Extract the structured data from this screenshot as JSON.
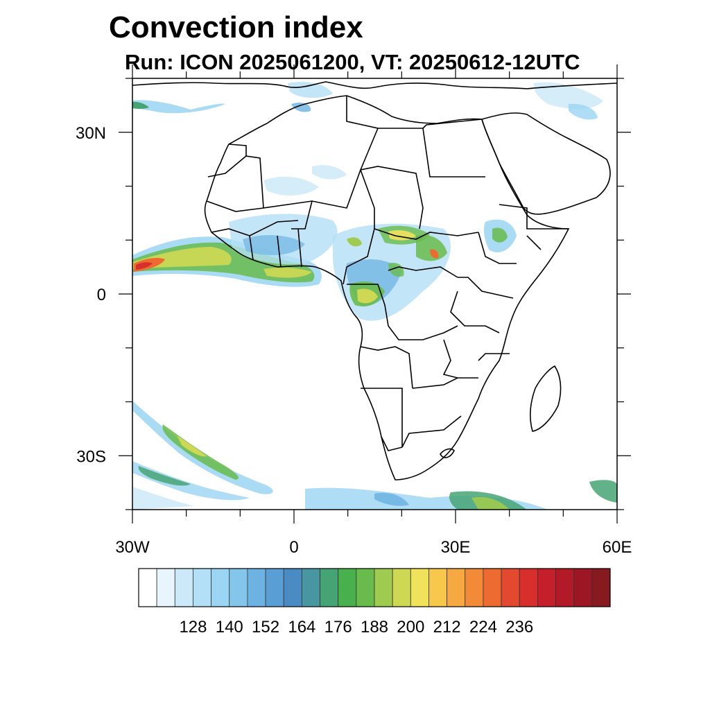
{
  "title": "Convection index",
  "subtitle": "Run: ICON 2025061200,  VT: 20250612-12UTC",
  "map": {
    "lon_range": [
      -30,
      60
    ],
    "lat_range": [
      -40,
      40
    ],
    "lon_ticks": [
      {
        "value": -30,
        "label": "30W"
      },
      {
        "value": 0,
        "label": "0"
      },
      {
        "value": 30,
        "label": "30E"
      },
      {
        "value": 60,
        "label": "60E"
      }
    ],
    "lat_ticks": [
      {
        "value": 30,
        "label": "30N"
      },
      {
        "value": 0,
        "label": "0"
      },
      {
        "value": -30,
        "label": "30S"
      }
    ]
  },
  "colorbar": {
    "colors": [
      "#ffffff",
      "#e8f5fc",
      "#cbe9f8",
      "#b3e0f6",
      "#9ad5f3",
      "#84c5ec",
      "#6db3e2",
      "#5a9ed6",
      "#4a8bc4",
      "#4796a0",
      "#46a474",
      "#48b04d",
      "#69bb4b",
      "#9ecb50",
      "#cfd853",
      "#f0e25a",
      "#f8c84c",
      "#f6a841",
      "#f28a38",
      "#ed6a31",
      "#e3492e",
      "#d82f2c",
      "#c41f2a",
      "#b21a27",
      "#9c1723",
      "#861a1f"
    ],
    "labels": [
      "128",
      "140",
      "152",
      "164",
      "176",
      "188",
      "200",
      "212",
      "224",
      "236"
    ]
  }
}
